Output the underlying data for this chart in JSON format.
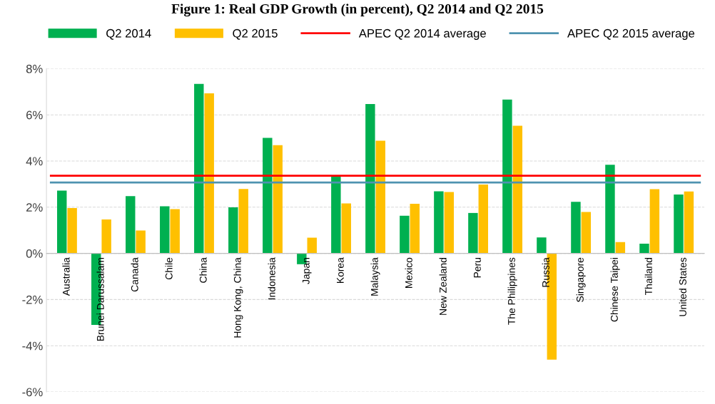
{
  "chart_data": {
    "type": "bar",
    "title": "Figure 1: Real GDP Growth (in percent), Q2 2014 and Q2 2015",
    "categories": [
      "Australia",
      "Brunei Darussalam",
      "Canada",
      "Chile",
      "China",
      "Hong Kong, China",
      "Indonesia",
      "Japan",
      "Korea",
      "Malaysia",
      "Mexico",
      "New Zealand",
      "Peru",
      "The Philippines",
      "Russia",
      "Singapore",
      "Chinese Taipei",
      "Thailand",
      "United States"
    ],
    "series": [
      {
        "name": "Q2 2014",
        "color": "#00b050",
        "values": [
          2.72,
          -3.1,
          2.48,
          2.04,
          7.34,
          1.99,
          5.0,
          -0.47,
          3.36,
          6.47,
          1.63,
          2.69,
          1.75,
          6.66,
          0.69,
          2.23,
          3.84,
          0.42,
          2.55
        ]
      },
      {
        "name": "Q2 2015",
        "color": "#ffc000",
        "values": [
          1.96,
          1.47,
          0.99,
          1.92,
          6.93,
          2.79,
          4.69,
          0.68,
          2.16,
          4.88,
          2.15,
          2.66,
          2.98,
          5.53,
          -4.6,
          1.79,
          0.49,
          2.78,
          2.68
        ]
      }
    ],
    "ref_lines": [
      {
        "axis": "y",
        "value": 3.36,
        "label": "APEC Q2 2014 average",
        "color": "#ff0000"
      },
      {
        "axis": "y",
        "value": 3.07,
        "label": "APEC Q2 2015 average",
        "color": "#4f93b0"
      }
    ],
    "ylim": [
      -6,
      8
    ],
    "yticks": [
      {
        "value": -6,
        "label": "-6%"
      },
      {
        "value": -4,
        "label": "-4%"
      },
      {
        "value": -2,
        "label": "-2%"
      },
      {
        "value": 0,
        "label": "0%"
      },
      {
        "value": 2,
        "label": "2%"
      },
      {
        "value": 4,
        "label": "4%"
      },
      {
        "value": 6,
        "label": "6%"
      },
      {
        "value": 8,
        "label": "8%"
      }
    ],
    "grid": "y",
    "legend": "top"
  }
}
